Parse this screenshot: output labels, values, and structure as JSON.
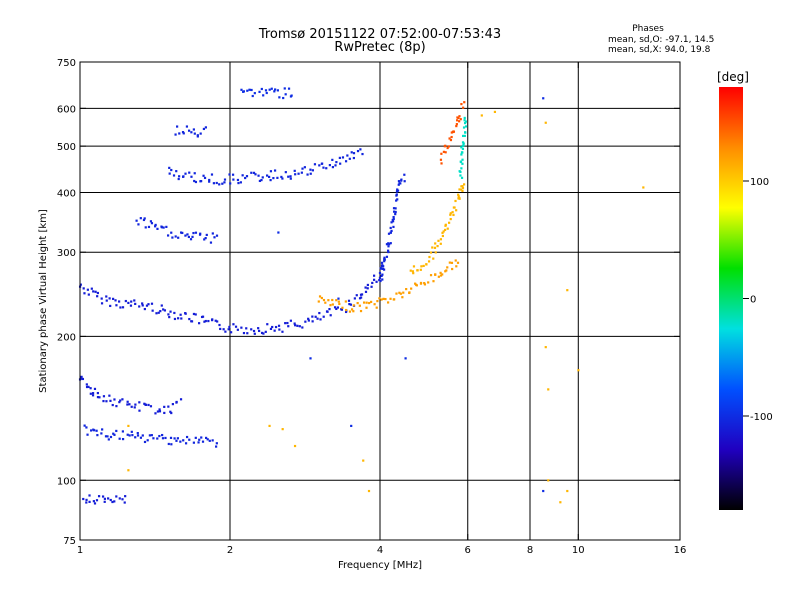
{
  "header": {
    "title_line1": "Tromsø 20151122 07:52:00-07:53:43",
    "title_line2": "RwPretec (8p)",
    "phases_heading": "Phases",
    "phases_o": "mean, sd,O: -97.1, 14.5",
    "phases_x": "mean, sd,X:  94.0, 19.8"
  },
  "chart_data": {
    "type": "scatter",
    "title": "Tromsø 20151122 07:52:00-07:53:43",
    "subtitle": "RwPretec (8p)",
    "xlabel": "Frequency [MHz]",
    "ylabel": "Stationary phase Virtual Height [km]",
    "x_scale": "log",
    "y_scale": "log",
    "xlim": [
      1,
      16
    ],
    "ylim": [
      75,
      750
    ],
    "x_ticks": [
      1,
      2,
      4,
      6,
      8,
      10,
      16
    ],
    "x_tick_labels": [
      "1",
      "2",
      "4",
      "6",
      "8",
      "10",
      "16"
    ],
    "y_ticks": [
      75,
      100,
      200,
      300,
      400,
      500,
      600,
      750
    ],
    "y_tick_labels": [
      "75",
      "100",
      "200",
      "300",
      "400",
      "500",
      "600",
      "750"
    ],
    "grid": true,
    "colorbar": {
      "label": "[deg]",
      "range": [
        -180,
        180
      ],
      "ticks": [
        100,
        0,
        -100
      ],
      "tick_labels": [
        "100",
        "0",
        "-100"
      ],
      "colors": [
        "#ff0000",
        "#ff8c00",
        "#ffff00",
        "#00e000",
        "#00e0e0",
        "#0050ff",
        "#2000c0",
        "#000000"
      ]
    },
    "series": [
      {
        "type": "trace",
        "phase": -110,
        "points": [
          [
            1.0,
            255
          ],
          [
            1.1,
            240
          ],
          [
            1.2,
            235
          ],
          [
            1.35,
            232
          ],
          [
            1.5,
            225
          ],
          [
            1.7,
            218
          ],
          [
            1.85,
            212
          ],
          [
            2.0,
            208
          ],
          [
            2.2,
            207
          ],
          [
            2.4,
            208
          ],
          [
            2.6,
            210
          ],
          [
            2.8,
            213
          ],
          [
            3.0,
            218
          ],
          [
            3.2,
            224
          ],
          [
            3.4,
            230
          ],
          [
            3.6,
            240
          ],
          [
            3.8,
            255
          ],
          [
            4.0,
            270
          ],
          [
            4.1,
            285
          ]
        ]
      },
      {
        "type": "trace",
        "phase": 120,
        "points": [
          [
            3.0,
            238
          ],
          [
            3.3,
            232
          ],
          [
            3.6,
            230
          ],
          [
            3.9,
            234
          ],
          [
            4.2,
            240
          ],
          [
            4.6,
            250
          ],
          [
            5.0,
            262
          ],
          [
            5.4,
            275
          ],
          [
            5.8,
            290
          ]
        ]
      },
      {
        "type": "trace",
        "phase": -105,
        "points": [
          [
            4.0,
            260
          ],
          [
            4.1,
            290
          ],
          [
            4.2,
            330
          ],
          [
            4.3,
            380
          ],
          [
            4.4,
            420
          ],
          [
            4.5,
            440
          ]
        ]
      },
      {
        "type": "trace",
        "phase": 110,
        "points": [
          [
            4.6,
            270
          ],
          [
            5.0,
            290
          ],
          [
            5.3,
            320
          ],
          [
            5.6,
            360
          ],
          [
            5.8,
            400
          ],
          [
            5.9,
            430
          ]
        ]
      },
      {
        "type": "trace",
        "phase": 150,
        "points": [
          [
            5.3,
            470
          ],
          [
            5.5,
            510
          ],
          [
            5.7,
            560
          ],
          [
            5.9,
            610
          ]
        ]
      },
      {
        "type": "trace",
        "phase": -20,
        "points": [
          [
            5.8,
            430
          ],
          [
            5.85,
            480
          ],
          [
            5.9,
            530
          ],
          [
            5.95,
            580
          ]
        ]
      },
      {
        "type": "trace",
        "phase": -105,
        "points": [
          [
            1.5,
            440
          ],
          [
            1.7,
            430
          ],
          [
            1.9,
            425
          ],
          [
            2.2,
            430
          ],
          [
            2.5,
            435
          ],
          [
            2.8,
            440
          ],
          [
            3.1,
            455
          ],
          [
            3.4,
            470
          ],
          [
            3.7,
            490
          ]
        ]
      },
      {
        "type": "trace",
        "phase": -105,
        "points": [
          [
            1.3,
            350
          ],
          [
            1.45,
            335
          ],
          [
            1.6,
            325
          ],
          [
            1.75,
            322
          ],
          [
            1.9,
            320
          ]
        ]
      },
      {
        "type": "trace",
        "phase": -105,
        "points": [
          [
            1.55,
            540
          ],
          [
            1.7,
            535
          ],
          [
            1.8,
            535
          ]
        ]
      },
      {
        "type": "trace",
        "phase": -110,
        "points": [
          [
            1.0,
            165
          ],
          [
            1.05,
            155
          ],
          [
            1.1,
            150
          ],
          [
            1.2,
            145
          ],
          [
            1.35,
            142
          ],
          [
            1.5,
            140
          ],
          [
            1.6,
            145
          ]
        ]
      },
      {
        "type": "trace",
        "phase": -105,
        "points": [
          [
            1.02,
            128
          ],
          [
            1.1,
            125
          ],
          [
            1.3,
            123
          ],
          [
            1.5,
            122
          ],
          [
            1.7,
            121
          ],
          [
            1.9,
            120
          ]
        ]
      },
      {
        "type": "trace",
        "phase": -100,
        "points": [
          [
            2.1,
            650
          ],
          [
            2.3,
            648
          ],
          [
            2.5,
            646
          ],
          [
            2.7,
            645
          ]
        ]
      },
      {
        "type": "trace",
        "phase": -110,
        "points": [
          [
            1.02,
            92
          ],
          [
            1.05,
            91
          ],
          [
            1.15,
            90
          ],
          [
            1.25,
            91
          ]
        ]
      },
      {
        "type": "scatter",
        "phase": 110,
        "points": [
          [
            2.4,
            130
          ],
          [
            2.55,
            128
          ],
          [
            1.25,
            130
          ],
          [
            3.8,
            95
          ],
          [
            6.8,
            590
          ],
          [
            6.4,
            580
          ],
          [
            8.6,
            560
          ],
          [
            10.0,
            170
          ],
          [
            13.5,
            410
          ],
          [
            9.5,
            250
          ],
          [
            8.6,
            190
          ],
          [
            8.7,
            155
          ],
          [
            8.7,
            100
          ],
          [
            9.2,
            90
          ],
          [
            9.5,
            95
          ],
          [
            2.7,
            118
          ],
          [
            3.7,
            110
          ],
          [
            1.25,
            105
          ]
        ]
      },
      {
        "type": "scatter",
        "phase": -100,
        "points": [
          [
            2.9,
            180
          ],
          [
            2.5,
            330
          ],
          [
            3.3,
            240
          ],
          [
            8.5,
            630
          ],
          [
            8.5,
            95
          ],
          [
            4.5,
            180
          ],
          [
            3.5,
            130
          ]
        ]
      }
    ]
  }
}
